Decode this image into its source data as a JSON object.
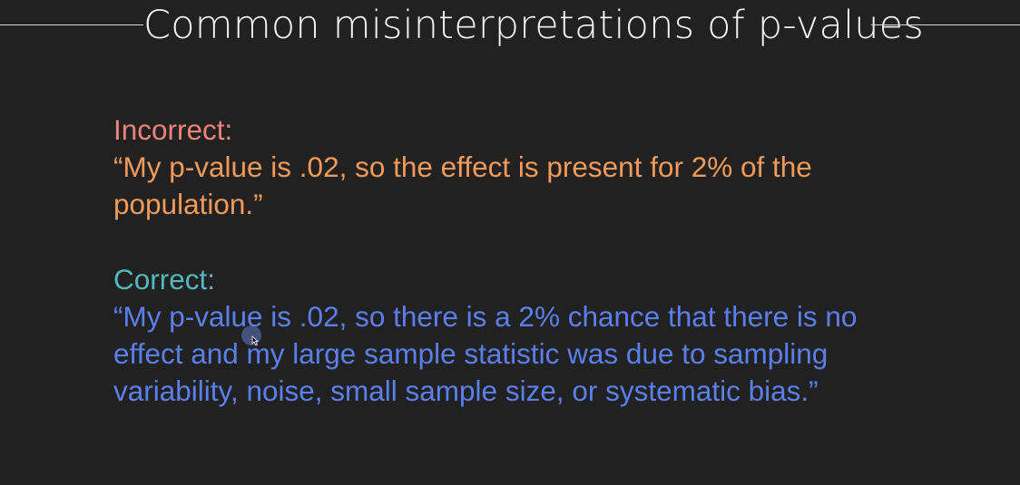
{
  "slide": {
    "title": "Common misinterpretations of p-values",
    "incorrect": {
      "label": "Incorrect:",
      "quote": "“My p-value is .02, so the effect is present for 2% of the population.”"
    },
    "correct": {
      "label": "Correct:",
      "quote": "“My p-value is .02, so there is a 2% chance that there is no effect and my large sample statistic was due to sampling variability, noise, small sample size, or systematic bias.”"
    }
  },
  "colors": {
    "background": "#212121",
    "title": "#f2f2f2",
    "incorrect_label": "#f08378",
    "incorrect_quote": "#f49a5a",
    "correct_label": "#53b8bd",
    "correct_quote": "#5b80ee"
  },
  "icons": {
    "cursor": "mouse-cursor-icon"
  }
}
